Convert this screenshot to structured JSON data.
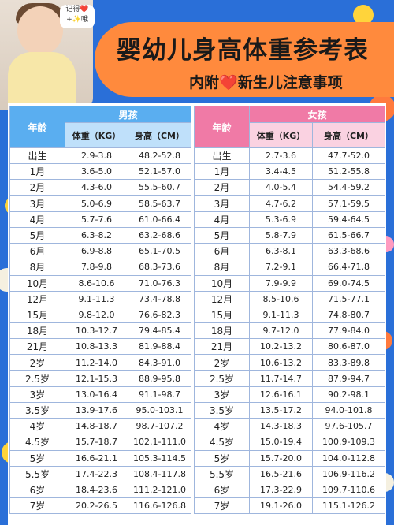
{
  "header": {
    "title": "婴幼儿身高体重参考表",
    "subtitle_prefix": "内附",
    "subtitle_heart": "❤️",
    "subtitle_suffix": "新生儿注意事项",
    "photo_note": "记得❤️+✨哦"
  },
  "table": {
    "age_header": "年龄",
    "weight_header": "体重（KG）",
    "height_header": "身高（CM）",
    "boys": {
      "label": "男孩",
      "rows": [
        {
          "age": "出生",
          "weight": "2.9-3.8",
          "height": "48.2-52.8"
        },
        {
          "age": "1月",
          "weight": "3.6-5.0",
          "height": "52.1-57.0"
        },
        {
          "age": "2月",
          "weight": "4.3-6.0",
          "height": "55.5-60.7"
        },
        {
          "age": "3月",
          "weight": "5.0-6.9",
          "height": "58.5-63.7"
        },
        {
          "age": "4月",
          "weight": "5.7-7.6",
          "height": "61.0-66.4"
        },
        {
          "age": "5月",
          "weight": "6.3-8.2",
          "height": "63.2-68.6"
        },
        {
          "age": "6月",
          "weight": "6.9-8.8",
          "height": "65.1-70.5"
        },
        {
          "age": "8月",
          "weight": "7.8-9.8",
          "height": "68.3-73.6"
        },
        {
          "age": "10月",
          "weight": "8.6-10.6",
          "height": "71.0-76.3"
        },
        {
          "age": "12月",
          "weight": "9.1-11.3",
          "height": "73.4-78.8"
        },
        {
          "age": "15月",
          "weight": "9.8-12.0",
          "height": "76.6-82.3"
        },
        {
          "age": "18月",
          "weight": "10.3-12.7",
          "height": "79.4-85.4"
        },
        {
          "age": "21月",
          "weight": "10.8-13.3",
          "height": "81.9-88.4"
        },
        {
          "age": "2岁",
          "weight": "11.2-14.0",
          "height": "84.3-91.0"
        },
        {
          "age": "2.5岁",
          "weight": "12.1-15.3",
          "height": "88.9-95.8"
        },
        {
          "age": "3岁",
          "weight": "13.0-16.4",
          "height": "91.1-98.7"
        },
        {
          "age": "3.5岁",
          "weight": "13.9-17.6",
          "height": "95.0-103.1"
        },
        {
          "age": "4岁",
          "weight": "14.8-18.7",
          "height": "98.7-107.2"
        },
        {
          "age": "4.5岁",
          "weight": "15.7-18.7",
          "height": "102.1-111.0"
        },
        {
          "age": "5岁",
          "weight": "16.6-21.1",
          "height": "105.3-114.5"
        },
        {
          "age": "5.5岁",
          "weight": "17.4-22.3",
          "height": "108.4-117.8"
        },
        {
          "age": "6岁",
          "weight": "18.4-23.6",
          "height": "111.2-121.0"
        },
        {
          "age": "7岁",
          "weight": "20.2-26.5",
          "height": "116.6-126.8"
        }
      ]
    },
    "girls": {
      "label": "女孩",
      "rows": [
        {
          "age": "出生",
          "weight": "2.7-3.6",
          "height": "47.7-52.0"
        },
        {
          "age": "1月",
          "weight": "3.4-4.5",
          "height": "51.2-55.8"
        },
        {
          "age": "2月",
          "weight": "4.0-5.4",
          "height": "54.4-59.2"
        },
        {
          "age": "3月",
          "weight": "4.7-6.2",
          "height": "57.1-59.5"
        },
        {
          "age": "4月",
          "weight": "5.3-6.9",
          "height": "59.4-64.5"
        },
        {
          "age": "5月",
          "weight": "5.8-7.9",
          "height": "61.5-66.7"
        },
        {
          "age": "6月",
          "weight": "6.3-8.1",
          "height": "63.3-68.6"
        },
        {
          "age": "8月",
          "weight": "7.2-9.1",
          "height": "66.4-71.8"
        },
        {
          "age": "10月",
          "weight": "7.9-9.9",
          "height": "69.0-74.5"
        },
        {
          "age": "12月",
          "weight": "8.5-10.6",
          "height": "71.5-77.1"
        },
        {
          "age": "15月",
          "weight": "9.1-11.3",
          "height": "74.8-80.7"
        },
        {
          "age": "18月",
          "weight": "9.7-12.0",
          "height": "77.9-84.0"
        },
        {
          "age": "21月",
          "weight": "10.2-13.2",
          "height": "80.6-87.0"
        },
        {
          "age": "2岁",
          "weight": "10.6-13.2",
          "height": "83.3-89.8"
        },
        {
          "age": "2.5岁",
          "weight": "11.7-14.7",
          "height": "87.9-94.7"
        },
        {
          "age": "3岁",
          "weight": "12.6-16.1",
          "height": "90.2-98.1"
        },
        {
          "age": "3.5岁",
          "weight": "13.5-17.2",
          "height": "94.0-101.8"
        },
        {
          "age": "4岁",
          "weight": "14.3-18.3",
          "height": "97.6-105.7"
        },
        {
          "age": "4.5岁",
          "weight": "15.0-19.4",
          "height": "100.9-109.3"
        },
        {
          "age": "5岁",
          "weight": "15.7-20.0",
          "height": "104.0-112.8"
        },
        {
          "age": "5.5岁",
          "weight": "16.5-21.6",
          "height": "106.9-116.2"
        },
        {
          "age": "6岁",
          "weight": "17.3-22.9",
          "height": "109.7-110.6"
        },
        {
          "age": "7岁",
          "weight": "19.1-26.0",
          "height": "115.1-126.2"
        }
      ]
    }
  }
}
